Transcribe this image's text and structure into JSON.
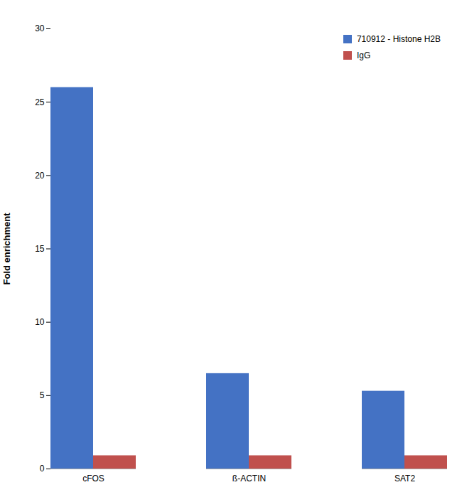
{
  "chart_data": {
    "type": "bar",
    "categories": [
      "cFOS",
      "ß-ACTIN",
      "SAT2"
    ],
    "series": [
      {
        "name": "710912 - Histone H2B",
        "color": "#4472C4",
        "values": [
          26.0,
          6.5,
          5.3
        ]
      },
      {
        "name": "IgG",
        "color": "#C0504D",
        "values": [
          0.9,
          0.9,
          0.9
        ]
      }
    ],
    "ylabel": "Fold enrichment",
    "ylim": [
      0,
      30
    ],
    "yticks": [
      0,
      5,
      10,
      15,
      20,
      25,
      30
    ],
    "grid": false,
    "legend": "upper right"
  }
}
